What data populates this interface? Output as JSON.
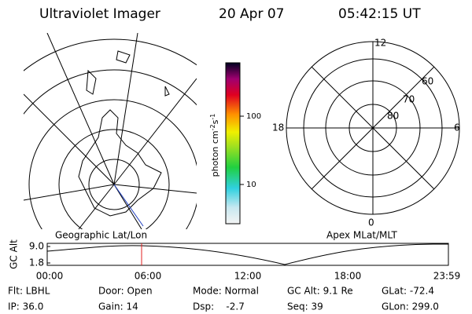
{
  "header": {
    "instrument": "Ultraviolet Imager",
    "date": "20 Apr 07",
    "time": "05:42:15 UT"
  },
  "colorbar": {
    "unit": "photon cm",
    "unit_sup1": "-2",
    "unit_mid": "s",
    "unit_sup2": "-1",
    "ticks": [
      "100",
      "10"
    ]
  },
  "polar": {
    "labels": [
      "12",
      "0",
      "18",
      "6",
      "60",
      "70",
      "80"
    ]
  },
  "altitude_plot": {
    "ylabel": "GC Alt",
    "left_title": "Geographic Lat/Lon",
    "right_title": "Apex MLat/MLT",
    "yticks": [
      "9.0",
      "1.8"
    ],
    "xticks": [
      "00:00",
      "06:00",
      "12:00",
      "18:00",
      "23:59"
    ]
  },
  "footer": {
    "rows": [
      [
        "Flt: LBHL",
        "Door: Open",
        "Mode: Normal",
        "GC Alt: 9.1 Re",
        "GLat: -72.4"
      ],
      [
        "IP: 36.0",
        "Gain: 14",
        "Dsp:    -2.7",
        "Seq: 39",
        "GLon: 299.0"
      ]
    ]
  }
}
